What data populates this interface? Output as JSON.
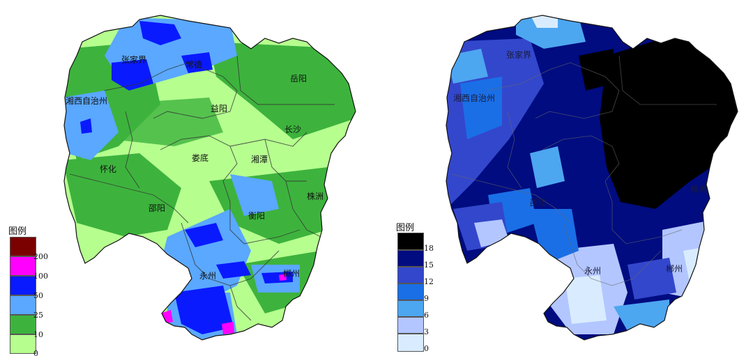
{
  "left_map": {
    "legend_title": "图例",
    "legend_bands": [
      {
        "label": "200",
        "color": "#7b0000"
      },
      {
        "label": "100",
        "color": "#ff00ff"
      },
      {
        "label": "50",
        "color": "#0a1aff"
      },
      {
        "label": "25",
        "color": "#5aa8ff"
      },
      {
        "label": "10",
        "color": "#3db33d"
      },
      {
        "label": "0",
        "color": "#b6ff8f"
      }
    ],
    "cities": [
      "张家界",
      "常德",
      "岳阳",
      "湘西自治州",
      "益阳",
      "长沙",
      "娄底",
      "湘潭",
      "怀化",
      "邵阳",
      "株洲",
      "衡阳",
      "永州",
      "郴州"
    ]
  },
  "right_map": {
    "legend_title": "图例",
    "legend_bands": [
      {
        "label": "18",
        "color": "#000000"
      },
      {
        "label": "15",
        "color": "#000c80"
      },
      {
        "label": "12",
        "color": "#3347cc"
      },
      {
        "label": "9",
        "color": "#1a6fe6"
      },
      {
        "label": "6",
        "color": "#4da6f0"
      },
      {
        "label": "3",
        "color": "#b3c6ff"
      },
      {
        "label": "0",
        "color": "#d9ecff"
      }
    ],
    "cities": [
      "张家界",
      "湘西自治州",
      "株洲",
      "邵阳",
      "永州",
      "郴州"
    ]
  }
}
